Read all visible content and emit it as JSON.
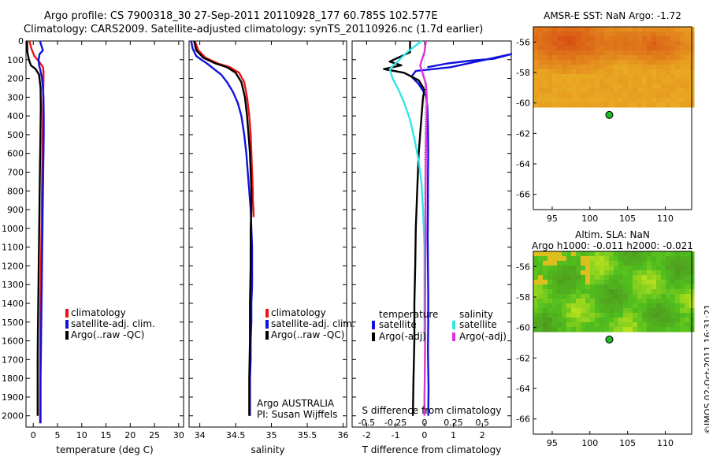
{
  "header": {
    "line1": "Argo profile: CS 7900318_30 27-Sep-2011 20110928_177 60.785S 102.577E",
    "line2": "Climatology: CARS2009. Satellite-adjusted climatology: synTS_20110926.nc (1.7d earlier)"
  },
  "colors": {
    "climatology": "#ee1111",
    "satellite": "#1111dd",
    "argo": "#000000",
    "sal_satellite": "#33e5e5",
    "sal_argo": "#e02ee0",
    "float_marker": "#22bb22"
  },
  "chart_data": [
    {
      "type": "line",
      "id": "temperature",
      "xlabel": "temperature (deg C)",
      "ylabel": "",
      "xlim": [
        -1.5,
        31
      ],
      "ylim": [
        2060,
        0
      ],
      "xticks": [
        "0",
        "5",
        "10",
        "15",
        "20",
        "25",
        "30"
      ],
      "xtick_values": [
        0,
        5,
        10,
        15,
        20,
        25,
        30
      ],
      "yticks": [
        "0",
        "100",
        "200",
        "300",
        "400",
        "500",
        "600",
        "700",
        "800",
        "900",
        "1000",
        "1100",
        "1200",
        "1300",
        "1400",
        "1500",
        "1600",
        "1700",
        "1800",
        "1900",
        "2000"
      ],
      "legend": [
        "climatology",
        "satellite-adj. clim.",
        "Argo(..raw -QC)"
      ],
      "series": [
        {
          "name": "climatology",
          "color": "#ee1111",
          "x": [
            -0.8,
            -0.4,
            0.2,
            1.2,
            2.0,
            2.1,
            2.1,
            2.05,
            2.0,
            1.95,
            1.9,
            1.85,
            1.8,
            1.75,
            1.7,
            1.65,
            1.6,
            1.55,
            1.5,
            1.48,
            1.45,
            1.43,
            1.42,
            1.4
          ],
          "y": [
            0,
            40,
            80,
            110,
            140,
            160,
            200,
            300,
            400,
            500,
            600,
            700,
            800,
            900,
            1000,
            1100,
            1200,
            1300,
            1400,
            1500,
            1600,
            1700,
            1800,
            2040
          ]
        },
        {
          "name": "satellite-adj. clim.",
          "color": "#1111dd",
          "x": [
            1.4,
            1.6,
            2.0,
            1.3,
            1.1,
            1.2,
            1.5,
            1.8,
            2.0,
            2.1,
            2.15,
            2.15,
            2.1,
            2.05,
            2.0,
            1.95,
            1.9,
            1.85,
            1.8,
            1.75,
            1.7,
            1.65,
            1.6,
            1.55,
            1.5,
            1.5
          ],
          "y": [
            0,
            20,
            50,
            70,
            100,
            130,
            160,
            200,
            250,
            300,
            400,
            500,
            600,
            700,
            800,
            900,
            1000,
            1100,
            1200,
            1300,
            1400,
            1500,
            1600,
            1700,
            1800,
            2040
          ]
        },
        {
          "name": "Argo(..raw -QC)",
          "color": "#000000",
          "x": [
            -1.3,
            -1.2,
            -0.9,
            -0.5,
            0.5,
            1.2,
            1.5,
            1.55,
            1.5,
            1.45,
            1.4,
            1.35,
            1.3,
            1.25,
            1.2,
            1.15,
            1.1,
            1.05,
            1.0,
            0.95,
            0.9,
            0.9
          ],
          "y": [
            0,
            60,
            100,
            130,
            150,
            180,
            250,
            350,
            450,
            550,
            650,
            750,
            850,
            950,
            1050,
            1150,
            1250,
            1350,
            1450,
            1550,
            1700,
            2000
          ]
        }
      ]
    },
    {
      "type": "line",
      "id": "salinity",
      "xlabel": "salinity",
      "ylabel": "",
      "xlim": [
        33.85,
        36.05
      ],
      "ylim": [
        2060,
        0
      ],
      "xticks": [
        "34",
        "34.5",
        "35",
        "35.5",
        "36"
      ],
      "xtick_values": [
        34,
        34.5,
        35,
        35.5,
        36
      ],
      "legend": [
        "climatology",
        "satellite-adj. clim.",
        "Argo(..raw -QC)"
      ],
      "annotation": [
        "Argo AUSTRALIA",
        "PI: Susan Wijffels"
      ],
      "series": [
        {
          "name": "climatology",
          "color": "#ee1111",
          "x": [
            33.93,
            33.98,
            34.08,
            34.25,
            34.42,
            34.55,
            34.62,
            34.66,
            34.69,
            34.71,
            34.72,
            34.73,
            34.74,
            34.74,
            34.75,
            34.75
          ],
          "y": [
            0,
            50,
            90,
            120,
            140,
            170,
            220,
            300,
            400,
            500,
            600,
            700,
            800,
            850,
            900,
            940
          ]
        },
        {
          "name": "satellite-adj. clim.",
          "color": "#1111dd",
          "x": [
            33.88,
            33.9,
            33.95,
            34.02,
            34.1,
            34.2,
            34.3,
            34.38,
            34.46,
            34.53,
            34.58,
            34.62,
            34.65,
            34.67,
            34.69,
            34.71,
            34.72,
            34.73,
            34.73,
            34.73,
            34.72,
            34.72,
            34.71,
            34.71,
            34.7,
            34.7,
            34.7
          ],
          "y": [
            0,
            40,
            80,
            100,
            120,
            150,
            180,
            220,
            270,
            330,
            400,
            500,
            600,
            700,
            800,
            900,
            1000,
            1100,
            1200,
            1300,
            1400,
            1500,
            1600,
            1700,
            1800,
            1900,
            2000
          ]
        },
        {
          "name": "Argo(..raw -QC)",
          "color": "#000000",
          "x": [
            33.92,
            33.95,
            34.05,
            34.22,
            34.38,
            34.5,
            34.58,
            34.63,
            34.66,
            34.68,
            34.7,
            34.71,
            34.72,
            34.72,
            34.71,
            34.71,
            34.7,
            34.7,
            34.69,
            34.69
          ],
          "y": [
            0,
            50,
            90,
            120,
            140,
            170,
            220,
            300,
            400,
            500,
            600,
            700,
            800,
            900,
            1000,
            1200,
            1400,
            1600,
            1800,
            2000
          ]
        }
      ]
    },
    {
      "type": "line",
      "id": "difference",
      "xlabel": "T difference from climatology",
      "xlabel_top": "S difference from climatology",
      "xlim": [
        -2.5,
        3
      ],
      "ylim": [
        2060,
        0
      ],
      "xticks": [
        "-2",
        "-1",
        "0",
        "1",
        "2"
      ],
      "xtick_values": [
        -2,
        -1,
        0,
        1,
        2
      ],
      "xticks_top": [
        "-0.5",
        "-0.25",
        "0",
        "0.25",
        "0.5"
      ],
      "legend_headers": [
        "temperature",
        "salinity"
      ],
      "legend": [
        "satellite",
        "Argo(-adj)",
        "satellite",
        "Argo(-adj)"
      ],
      "series": [
        {
          "name": "temperature satellite",
          "color": "#1111dd",
          "x": [
            0.1,
            0.8,
            1.6,
            2.4,
            3.0,
            0.9,
            -0.3,
            -0.45,
            -0.2,
            0.05,
            0.1,
            0.12,
            0.13,
            0.12,
            0.12,
            0.11,
            0.12,
            0.13,
            0.13,
            0.12,
            0.14,
            0.13
          ],
          "y": [
            140,
            120,
            105,
            95,
            70,
            140,
            160,
            190,
            230,
            290,
            350,
            450,
            600,
            750,
            900,
            1050,
            1200,
            1350,
            1500,
            1650,
            1850,
            2000
          ]
        },
        {
          "name": "temperature Argo(-adj)",
          "color": "#000000",
          "x": [
            -0.5,
            -0.5,
            -1.2,
            -0.8,
            -1.4,
            -0.7,
            -0.2,
            0.0,
            -0.05,
            -0.1,
            -0.15,
            -0.2,
            -0.25,
            -0.3,
            -0.32,
            -0.35,
            -0.35,
            -0.38,
            -0.4
          ],
          "y": [
            0,
            60,
            110,
            130,
            150,
            170,
            210,
            260,
            300,
            400,
            500,
            600,
            800,
            1000,
            1200,
            1400,
            1600,
            1800,
            2000
          ]
        },
        {
          "name": "salinity satellite",
          "color": "#33e5e5",
          "x": [
            -0.1,
            -0.6,
            -1.2,
            -1.1,
            -0.9,
            -0.7,
            -0.5,
            -0.35,
            -0.2,
            -0.1,
            -0.05,
            0.0,
            0.0,
            0.0
          ],
          "y": [
            0,
            60,
            150,
            200,
            260,
            330,
            420,
            520,
            640,
            760,
            900,
            1100,
            1400,
            1600
          ]
        },
        {
          "name": "salinity Argo(-adj)",
          "color": "#e02ee0",
          "x": [
            0.05,
            0.0,
            -0.15,
            -0.05,
            0.05,
            0.08,
            0.07,
            0.06,
            0.05,
            0.04,
            0.04,
            0.03,
            0.02,
            0.02,
            0.01,
            0.0,
            0.0,
            0.0
          ],
          "y": [
            0,
            60,
            130,
            180,
            230,
            300,
            400,
            500,
            600,
            800,
            1000,
            1200,
            1400,
            1600,
            1800,
            1900,
            1950,
            2000
          ]
        }
      ]
    },
    {
      "type": "heatmap",
      "id": "sst-map",
      "title": "AMSR-E SST: NaN Argo: -1.72",
      "xticks": [
        "95",
        "100",
        "105",
        "110"
      ],
      "xtick_values": [
        95,
        100,
        105,
        110
      ],
      "yticks": [
        "-56",
        "-58",
        "-60",
        "-62",
        "-64",
        "-66"
      ],
      "ytick_values": [
        -56,
        -58,
        -60,
        -62,
        -64,
        -66
      ],
      "xlim": [
        92.5,
        113.5
      ],
      "ylim": [
        -67,
        -55
      ],
      "float_position": {
        "lon": 102.577,
        "lat": -60.785
      }
    },
    {
      "type": "heatmap",
      "id": "sla-map",
      "title": "Altim. SLA: NaN",
      "subtitle": "Argo h1000: -0.011 h2000: -0.021",
      "xticks": [
        "95",
        "100",
        "105",
        "110"
      ],
      "xtick_values": [
        95,
        100,
        105,
        110
      ],
      "yticks": [
        "-56",
        "-58",
        "-60",
        "-62",
        "-64",
        "-66"
      ],
      "ytick_values": [
        -56,
        -58,
        -60,
        -62,
        -64,
        -66
      ],
      "xlim": [
        92.5,
        113.5
      ],
      "ylim": [
        -67,
        -55
      ],
      "float_position": {
        "lon": 102.577,
        "lat": -60.785
      }
    }
  ],
  "watermark": "©IMOS 02-Oct-2011 16:31:21"
}
